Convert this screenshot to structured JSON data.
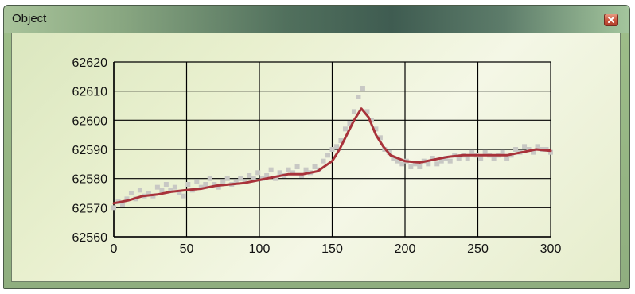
{
  "window": {
    "title": "Object",
    "close_icon": "close-icon"
  },
  "colors": {
    "line": "#a8323a",
    "points": "#c8c8c4",
    "grid": "#000000"
  },
  "chart_data": {
    "type": "scatter",
    "title": "",
    "xlabel": "",
    "ylabel": "",
    "xlim": [
      0,
      300
    ],
    "ylim": [
      62560,
      62620
    ],
    "x_ticks": [
      "0",
      "50",
      "100",
      "150",
      "200",
      "250",
      "300"
    ],
    "y_ticks": [
      "62560",
      "62570",
      "62580",
      "62590",
      "62600",
      "62610",
      "62620"
    ],
    "grid": true,
    "legend": "none",
    "series": [
      {
        "kind": "line",
        "x": [
          0,
          10,
          20,
          30,
          40,
          50,
          60,
          70,
          80,
          90,
          100,
          110,
          120,
          130,
          140,
          150,
          155,
          160,
          165,
          170,
          175,
          180,
          185,
          190,
          200,
          210,
          220,
          230,
          240,
          250,
          260,
          270,
          280,
          290,
          300
        ],
        "y": [
          62571.5,
          62572.5,
          62574,
          62574.5,
          62575.5,
          62576,
          62576.5,
          62577.5,
          62578,
          62578.5,
          62579.5,
          62580.5,
          62581.5,
          62581.5,
          62582.5,
          62586,
          62590,
          62595,
          62600,
          62604,
          62601,
          62595,
          62591,
          62588,
          62586,
          62585.5,
          62586.5,
          62587.5,
          62588,
          62588,
          62588,
          62588,
          62589,
          62590,
          62589.5
        ]
      },
      {
        "kind": "points",
        "x": [
          0,
          3,
          6,
          9,
          12,
          15,
          18,
          21,
          24,
          27,
          30,
          33,
          36,
          39,
          42,
          45,
          48,
          51,
          54,
          57,
          60,
          63,
          66,
          69,
          72,
          75,
          78,
          81,
          84,
          87,
          90,
          93,
          96,
          99,
          102,
          105,
          108,
          111,
          114,
          117,
          120,
          123,
          126,
          129,
          132,
          135,
          138,
          141,
          144,
          147,
          150,
          153,
          156,
          159,
          162,
          165,
          168,
          171,
          174,
          177,
          180,
          183,
          186,
          189,
          192,
          195,
          198,
          201,
          204,
          207,
          210,
          213,
          216,
          219,
          222,
          225,
          228,
          231,
          234,
          237,
          240,
          243,
          246,
          249,
          252,
          255,
          258,
          261,
          264,
          267,
          270,
          273,
          276,
          279,
          282,
          285,
          288,
          291,
          294,
          297,
          300
        ],
        "y": [
          62570,
          62572,
          62571,
          62573,
          62575,
          62573,
          62576,
          62574,
          62575,
          62574,
          62577,
          62576,
          62578,
          62576,
          62577,
          62575,
          62574,
          62578,
          62576,
          62579,
          62577,
          62578,
          62580,
          62578,
          62577,
          62579,
          62580,
          62578,
          62579,
          62580,
          62579,
          62581,
          62580,
          62582,
          62580,
          62581,
          62583,
          62580,
          62582,
          62581,
          62583,
          62582,
          62584,
          62581,
          62583,
          62582,
          62584,
          62583,
          62586,
          62588,
          62590,
          62591,
          62593,
          62597,
          62599,
          62603,
          62608,
          62611,
          62603,
          62600,
          62597,
          62594,
          62590,
          62589,
          62587,
          62586,
          62585,
          62586,
          62584,
          62585,
          62584,
          62586,
          62585,
          62587,
          62585,
          62586,
          62587,
          62586,
          62588,
          62587,
          62588,
          62587,
          62589,
          62588,
          62587,
          62589,
          62588,
          62587,
          62588,
          62589,
          62587,
          62588,
          62590,
          62589,
          62591,
          62590,
          62589,
          62591,
          62590,
          62590,
          62589
        ]
      }
    ]
  }
}
